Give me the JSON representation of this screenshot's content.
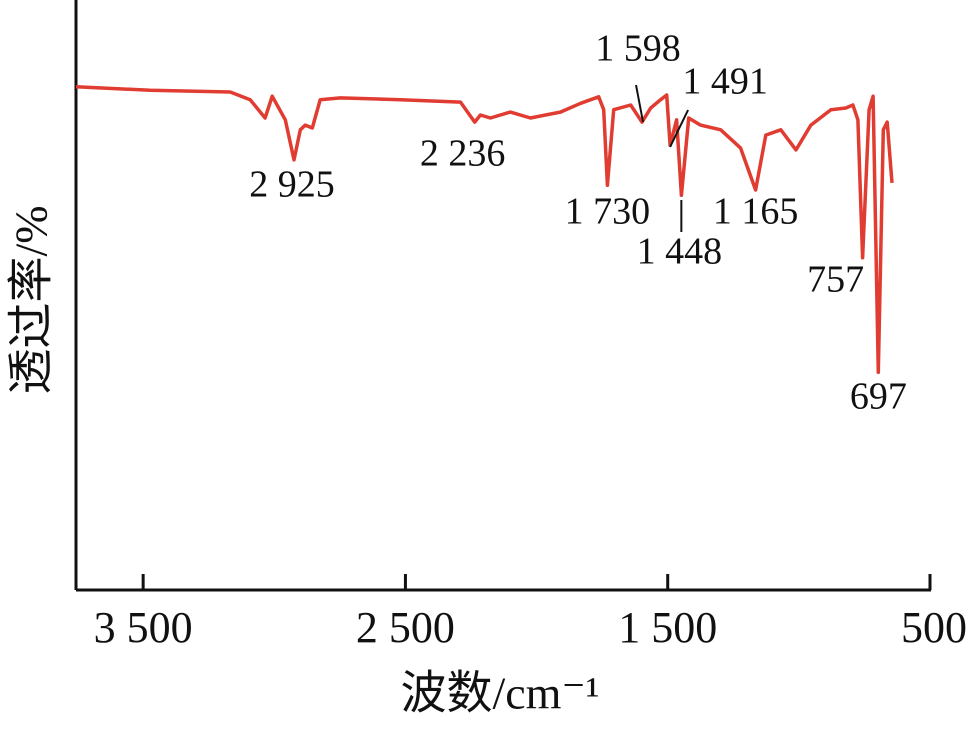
{
  "chart_data": {
    "type": "line",
    "x_label": "波数/cm⁻¹",
    "y_label": "透过率/%",
    "xlim": [
      3756,
      500
    ],
    "ylim": [
      0,
      100
    ],
    "xticks": [
      {
        "value": 3500,
        "label": "3 500"
      },
      {
        "value": 2500,
        "label": "2 500"
      },
      {
        "value": 1500,
        "label": "1 500"
      },
      {
        "value": 500,
        "label": "500"
      }
    ],
    "series": [
      {
        "color": "#e03c31",
        "x": [
          3756,
          3474,
          3168,
          3092,
          3035,
          3008,
          2958,
          2925,
          2901,
          2882,
          2855,
          2825,
          2748,
          2519,
          2290,
          2236,
          2214,
          2176,
          2100,
          2023,
          1966,
          1909,
          1832,
          1763,
          1744,
          1730,
          1706,
          1641,
          1598,
          1565,
          1527,
          1504,
          1491,
          1466,
          1448,
          1420,
          1375,
          1298,
          1222,
          1165,
          1126,
          1069,
          1011,
          954,
          878,
          821,
          794,
          775,
          757,
          732,
          717,
          697,
          678,
          663,
          645
        ],
        "values": [
          85.3,
          84.7,
          84.4,
          83.1,
          80.0,
          83.7,
          79.7,
          72.9,
          78.0,
          78.8,
          78.3,
          83.1,
          83.4,
          83.1,
          82.7,
          79.3,
          80.5,
          80.0,
          81.0,
          80.0,
          80.5,
          81.0,
          82.5,
          83.6,
          81.4,
          68.6,
          81.4,
          82.2,
          79.3,
          81.7,
          83.1,
          83.9,
          75.4,
          79.7,
          66.9,
          80.0,
          78.8,
          78.0,
          74.9,
          67.8,
          77.1,
          78.0,
          74.6,
          78.8,
          81.4,
          81.7,
          82.2,
          79.7,
          56.3,
          81.4,
          83.7,
          36.9,
          78.0,
          79.3,
          69.0
        ]
      }
    ],
    "annotations": [
      {
        "value": 2925,
        "label": "2 925"
      },
      {
        "value": 2236,
        "label": "2 236"
      },
      {
        "value": 1730,
        "label": "1 730"
      },
      {
        "value": 1598,
        "label": "1 598"
      },
      {
        "value": 1491,
        "label": "1 491"
      },
      {
        "value": 1448,
        "label": "1 448"
      },
      {
        "value": 1165,
        "label": "1 165"
      },
      {
        "value": 757,
        "label": "757"
      },
      {
        "value": 697,
        "label": "697"
      }
    ]
  }
}
